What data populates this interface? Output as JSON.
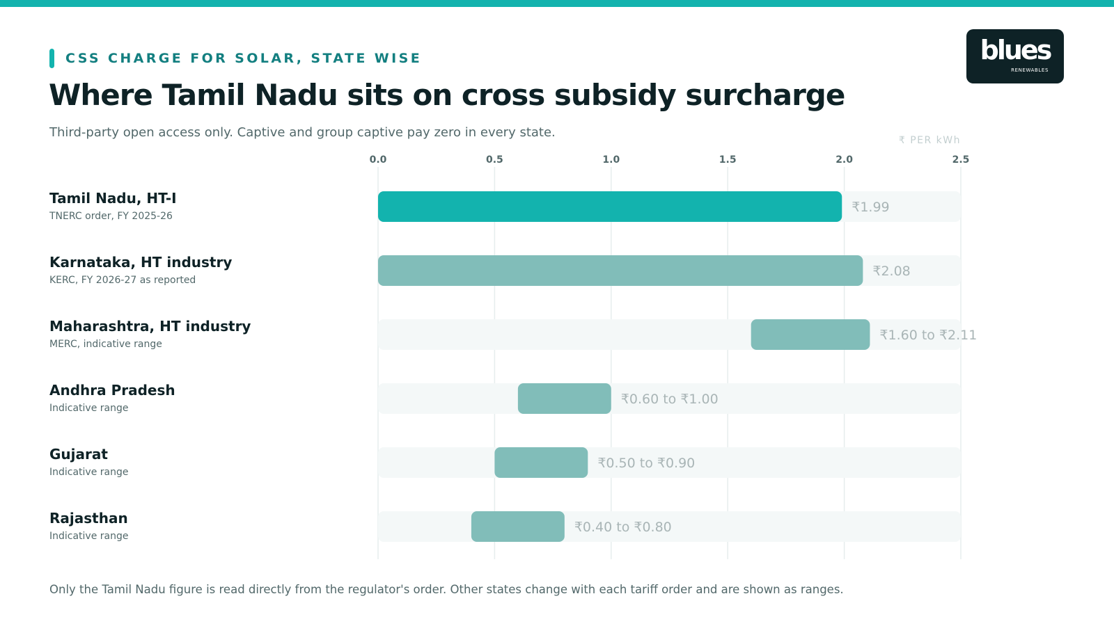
{
  "header": {
    "eyebrow": "CSS CHARGE FOR SOLAR, STATE WISE",
    "title": "Where Tamil Nadu sits on cross subsidy surcharge",
    "subtitle": "Third-party open access only. Captive and group captive pay zero in every state.",
    "unit_label": "₹ PER kWh"
  },
  "logo": {
    "main": "blues",
    "sub": "RENEWABLES"
  },
  "footer": {
    "note": "Only the Tamil Nadu figure is read directly from the regulator's order. Other states change with each tariff order and are shown as ranges."
  },
  "colors": {
    "accent": "#13b3ae",
    "range_bar": "#81bdb9",
    "track": "#f4f8f8",
    "grid": "#e6eded",
    "value_label": "#a9b5b6"
  },
  "chart_data": {
    "type": "bar",
    "orientation": "horizontal",
    "xlim": [
      0,
      2.5
    ],
    "ticks": [
      {
        "value": 0,
        "label": "0.0"
      },
      {
        "value": 0.5,
        "label": "0.5"
      },
      {
        "value": 1,
        "label": "1.0"
      },
      {
        "value": 1.5,
        "label": "1.5"
      },
      {
        "value": 2,
        "label": "2.0"
      },
      {
        "value": 2.5,
        "label": "2.5"
      }
    ],
    "grid": true,
    "rows": [
      {
        "name": "Tamil Nadu, HT-I",
        "note": "TNERC order, FY 2025-26",
        "low": 0,
        "high": 1.99,
        "value_label": "₹1.99",
        "highlight": true
      },
      {
        "name": "Karnataka, HT industry",
        "note": "KERC, FY 2026-27 as reported",
        "low": 0,
        "high": 2.08,
        "value_label": "₹2.08",
        "highlight": false
      },
      {
        "name": "Maharashtra, HT industry",
        "note": "MERC, indicative range",
        "low": 1.6,
        "high": 2.11,
        "value_label": "₹1.60 to ₹2.11",
        "highlight": false
      },
      {
        "name": "Andhra Pradesh",
        "note": "Indicative range",
        "low": 0.6,
        "high": 1.0,
        "value_label": "₹0.60 to ₹1.00",
        "highlight": false
      },
      {
        "name": "Gujarat",
        "note": "Indicative range",
        "low": 0.5,
        "high": 0.9,
        "value_label": "₹0.50 to ₹0.90",
        "highlight": false
      },
      {
        "name": "Rajasthan",
        "note": "Indicative range",
        "low": 0.4,
        "high": 0.8,
        "value_label": "₹0.40 to ₹0.80",
        "highlight": false
      }
    ]
  }
}
